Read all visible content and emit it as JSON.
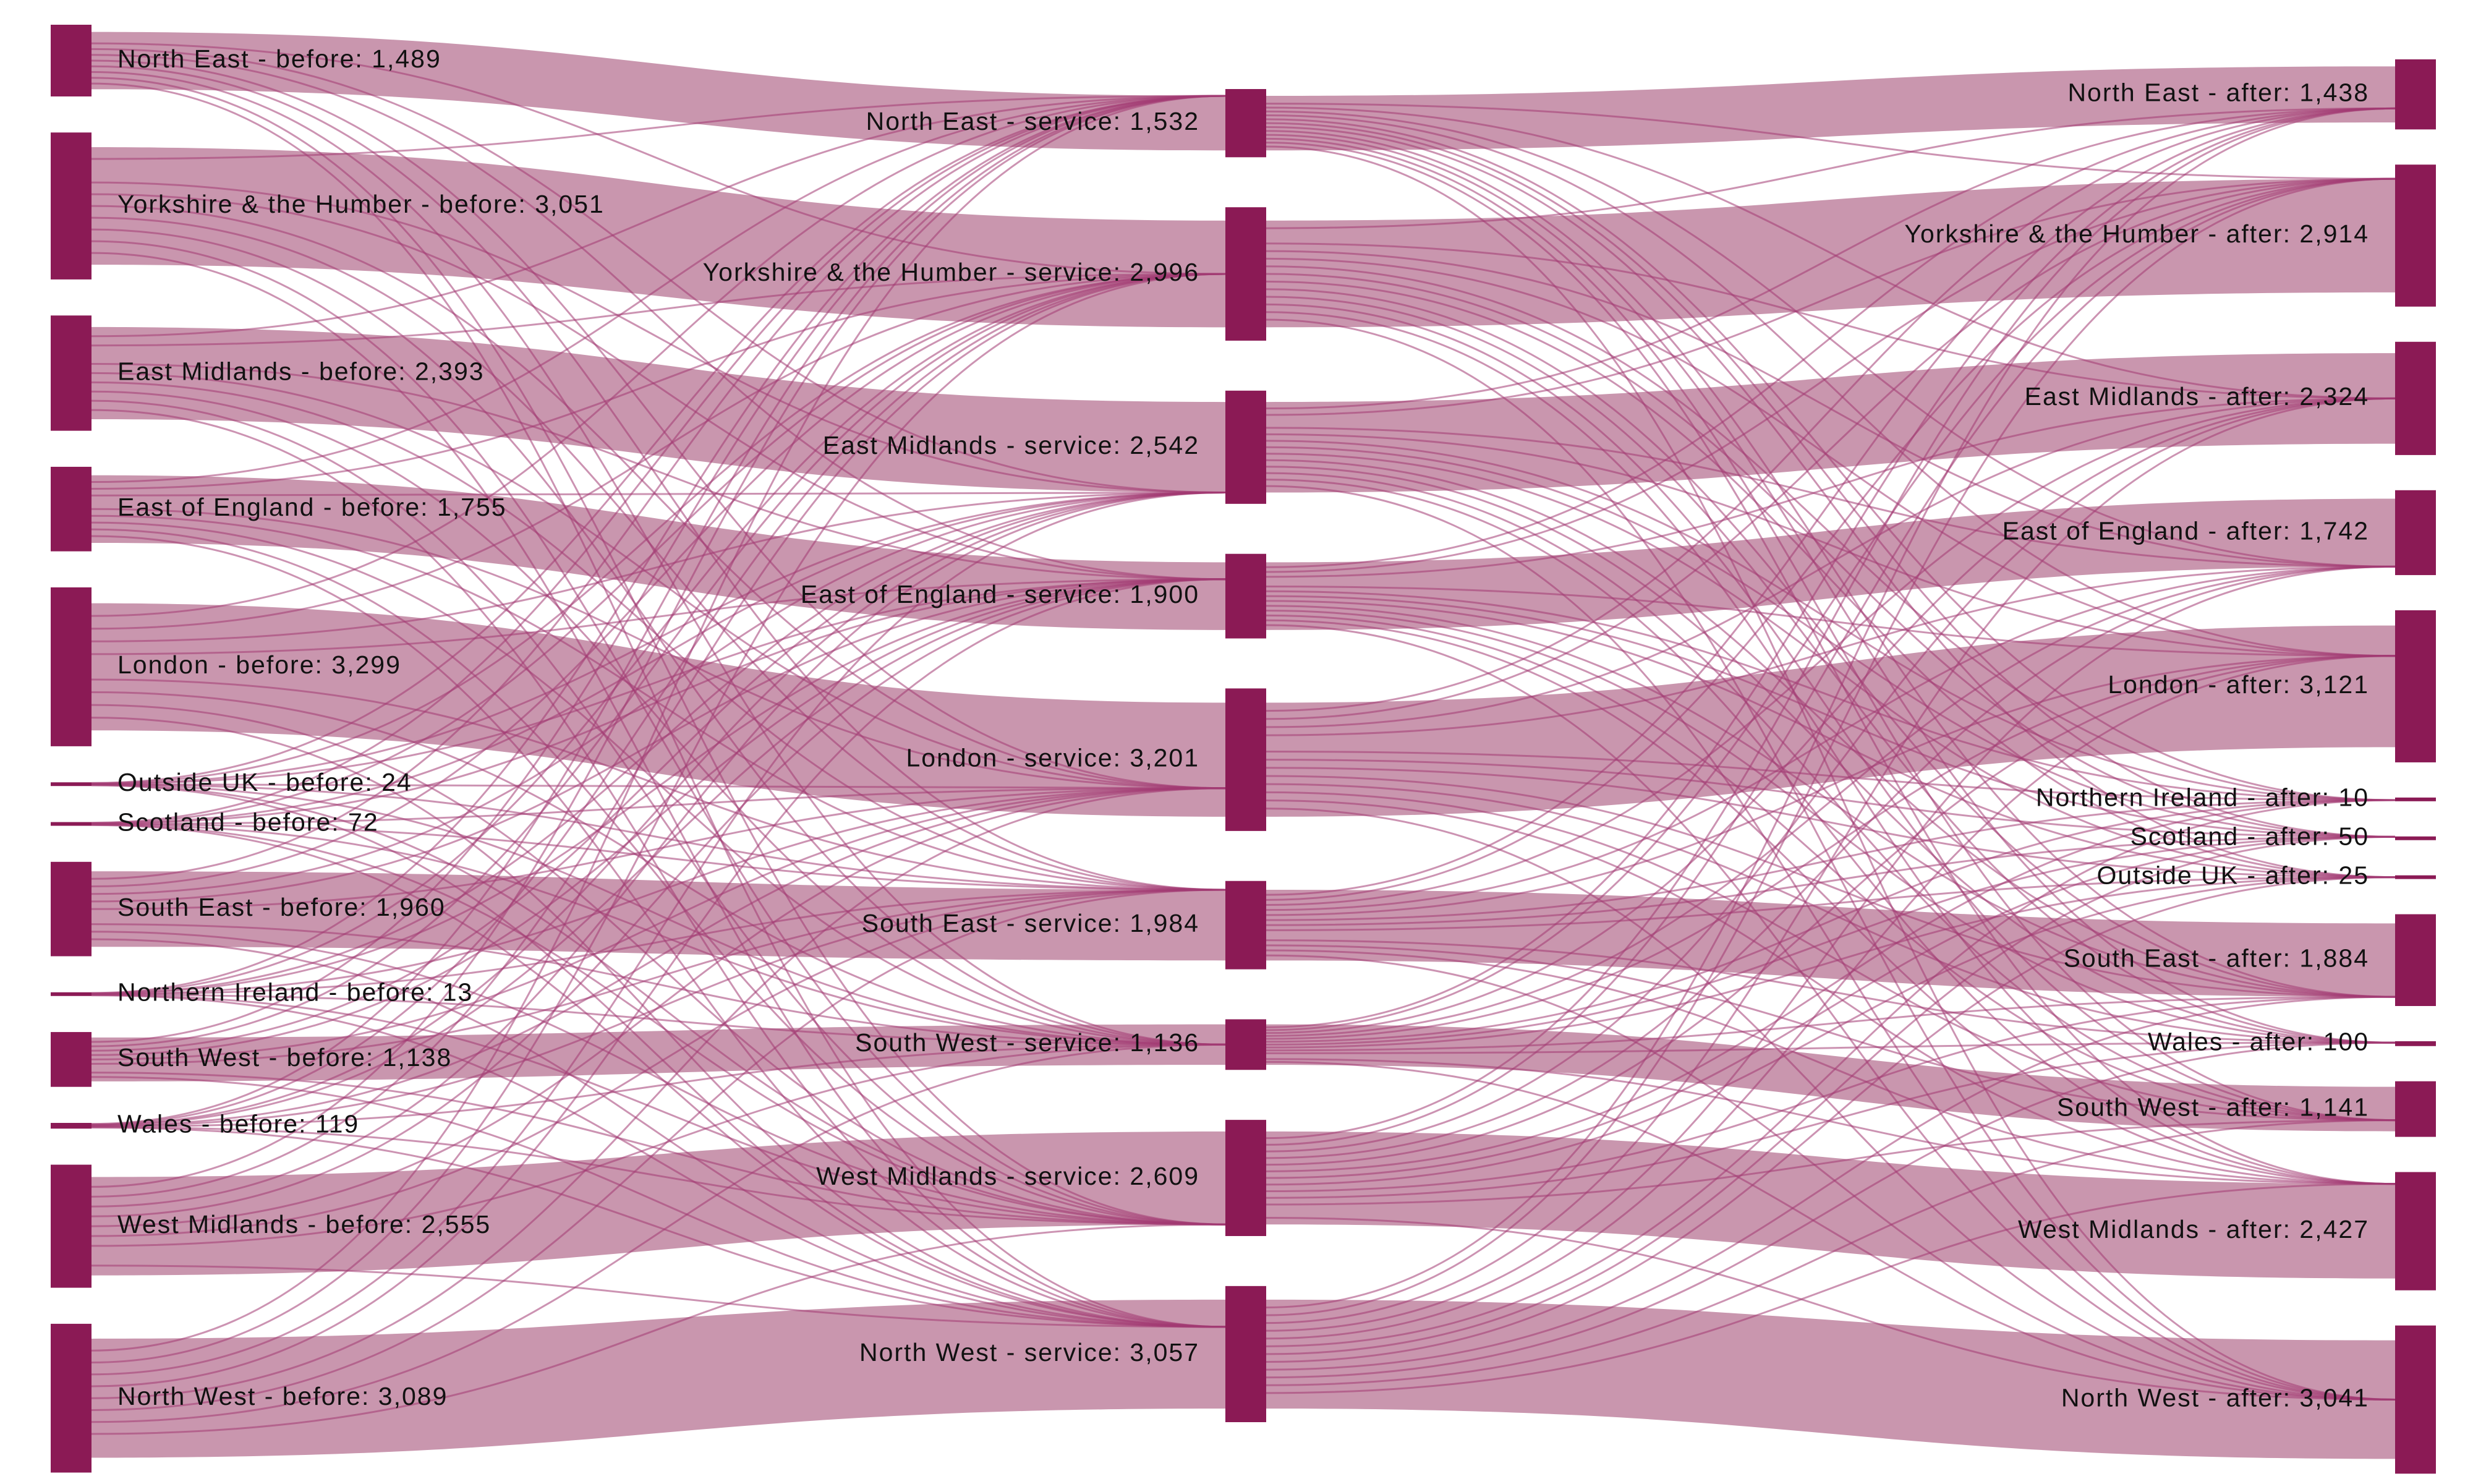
{
  "colors": {
    "node": "#8b1a55",
    "link": "#c996ae",
    "link_line": "#a23a72"
  },
  "nodes": {
    "before": [
      {
        "id": "b_ne",
        "label": "North East - before: 1,489",
        "value": 1489
      },
      {
        "id": "b_yh",
        "label": "Yorkshire & the Humber - before: 3,051",
        "value": 3051
      },
      {
        "id": "b_em",
        "label": "East Midlands - before: 2,393",
        "value": 2393
      },
      {
        "id": "b_ee",
        "label": "East of England - before: 1,755",
        "value": 1755
      },
      {
        "id": "b_lon",
        "label": "London - before: 3,299",
        "value": 3299
      },
      {
        "id": "b_out",
        "label": "Outside UK - before: 24",
        "value": 24
      },
      {
        "id": "b_sco",
        "label": "Scotland - before: 72",
        "value": 72
      },
      {
        "id": "b_se",
        "label": "South East - before: 1,960",
        "value": 1960
      },
      {
        "id": "b_ni",
        "label": "Northern Ireland - before: 13",
        "value": 13
      },
      {
        "id": "b_sw",
        "label": "South West - before: 1,138",
        "value": 1138
      },
      {
        "id": "b_wal",
        "label": "Wales - before: 119",
        "value": 119
      },
      {
        "id": "b_wm",
        "label": "West Midlands - before: 2,555",
        "value": 2555
      },
      {
        "id": "b_nw",
        "label": "North West - before: 3,089",
        "value": 3089
      }
    ],
    "service": [
      {
        "id": "s_ne",
        "label": "North East - service: 1,532",
        "value": 1532
      },
      {
        "id": "s_yh",
        "label": "Yorkshire & the Humber - service: 2,996",
        "value": 2996
      },
      {
        "id": "s_em",
        "label": "East Midlands - service: 2,542",
        "value": 2542
      },
      {
        "id": "s_ee",
        "label": "East of England - service: 1,900",
        "value": 1900
      },
      {
        "id": "s_lon",
        "label": "London - service: 3,201",
        "value": 3201
      },
      {
        "id": "s_se",
        "label": "South East - service: 1,984",
        "value": 1984
      },
      {
        "id": "s_sw",
        "label": "South West - service: 1,136",
        "value": 1136
      },
      {
        "id": "s_wm",
        "label": "West Midlands - service: 2,609",
        "value": 2609
      },
      {
        "id": "s_nw",
        "label": "North West - service: 3,057",
        "value": 3057
      }
    ],
    "after": [
      {
        "id": "a_ne",
        "label": "North East - after: 1,438",
        "value": 1438
      },
      {
        "id": "a_yh",
        "label": "Yorkshire & the Humber - after: 2,914",
        "value": 2914
      },
      {
        "id": "a_em",
        "label": "East Midlands - after: 2,324",
        "value": 2324
      },
      {
        "id": "a_ee",
        "label": "East of England - after: 1,742",
        "value": 1742
      },
      {
        "id": "a_lon",
        "label": "London - after: 3,121",
        "value": 3121
      },
      {
        "id": "a_ni",
        "label": "Northern Ireland - after: 10",
        "value": 10
      },
      {
        "id": "a_sco",
        "label": "Scotland - after: 50",
        "value": 50
      },
      {
        "id": "a_out",
        "label": "Outside UK - after: 25",
        "value": 25
      },
      {
        "id": "a_se",
        "label": "South East - after: 1,884",
        "value": 1884
      },
      {
        "id": "a_wal",
        "label": "Wales - after: 100",
        "value": 100
      },
      {
        "id": "a_sw",
        "label": "South West - after: 1,141",
        "value": 1141
      },
      {
        "id": "a_wm",
        "label": "West Midlands - after: 2,427",
        "value": 2427
      },
      {
        "id": "a_nw",
        "label": "North West - after: 3,041",
        "value": 3041
      }
    ]
  }
}
